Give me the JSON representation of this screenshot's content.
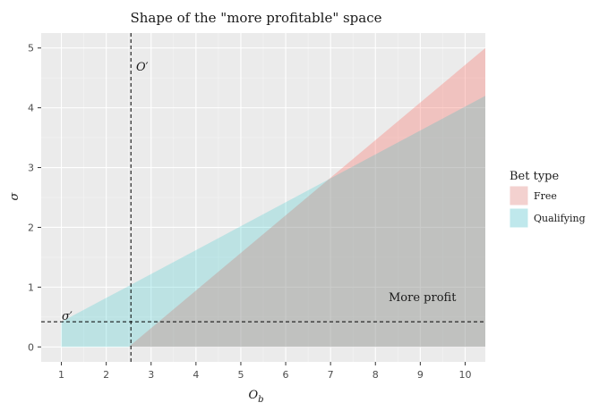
{
  "chart_data": {
    "type": "area",
    "title": "Shape of the \"more profitable\" space",
    "xlabel_main": "O",
    "xlabel_sub": "b",
    "ylabel": "σ",
    "xlim": [
      0.55,
      10.45
    ],
    "ylim": [
      -0.25,
      5.25
    ],
    "x_ticks": [
      1,
      2,
      3,
      4,
      5,
      6,
      7,
      8,
      9,
      10
    ],
    "y_ticks": [
      0,
      1,
      2,
      3,
      4,
      5
    ],
    "grid": true,
    "legend": {
      "title": "Bet type",
      "placement": "right",
      "entries": [
        "Free",
        "Qualifying"
      ]
    },
    "series": [
      {
        "name": "Free",
        "color": "#f8766d",
        "opacity": 0.35,
        "x": [
          2.5,
          10.45
        ],
        "lower": [
          0,
          0
        ],
        "upper": [
          0,
          5.0
        ]
      },
      {
        "name": "Qualifying",
        "color": "#00bfc4",
        "opacity": 0.2,
        "x": [
          1.0,
          10.45
        ],
        "lower": [
          0,
          0
        ],
        "upper": [
          0.42,
          4.2
        ]
      }
    ],
    "vline": {
      "x": 2.55,
      "label_main": "O",
      "label_prime": "′"
    },
    "hline": {
      "y": 0.42,
      "label_main": "σ",
      "label_prime": "′"
    },
    "annotation": {
      "text": "More profit",
      "x": 8.8,
      "y": 0.85
    }
  }
}
